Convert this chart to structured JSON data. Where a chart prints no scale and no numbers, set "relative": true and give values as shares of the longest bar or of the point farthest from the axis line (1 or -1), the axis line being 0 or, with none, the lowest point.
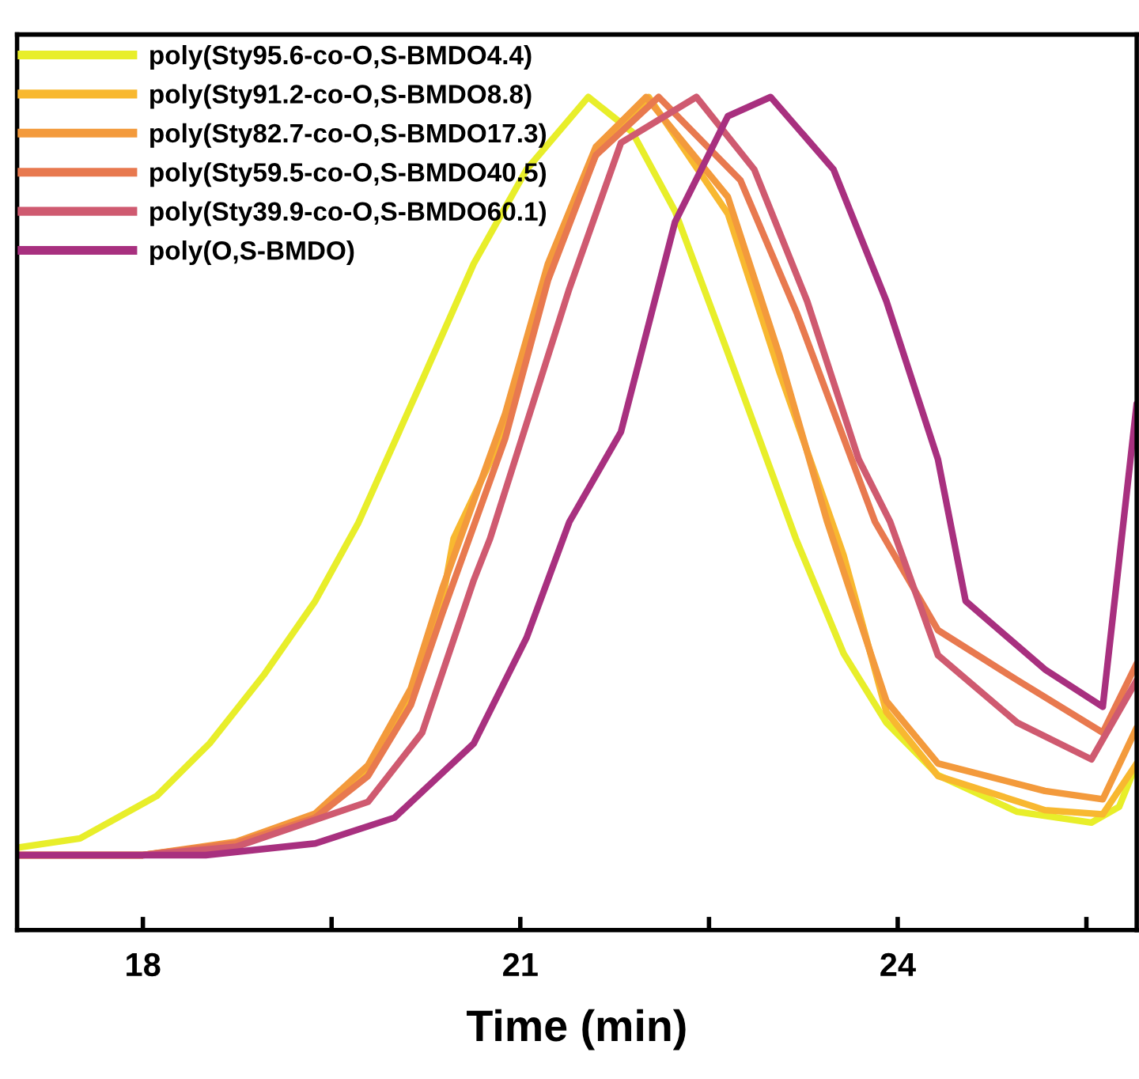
{
  "chart_data": {
    "type": "line",
    "relative": true,
    "xlabel": "Time (min)",
    "xlim": [
      17,
      25.9
    ],
    "xticks": [
      18,
      {
        "value": 19.5,
        "label": null
      },
      21,
      {
        "value": 22.5,
        "label": null
      },
      24,
      {
        "value": 25.5,
        "label": null
      }
    ],
    "legend": "top left",
    "grid": false,
    "marker": "none",
    "line_style": "solid",
    "series": [
      {
        "name": "poly(Sty95.6-co-O,S-BMDO4.4)",
        "color": "#e8ee2a",
        "x": [
          17.0,
          17.5,
          18.11,
          18.53,
          18.96,
          19.37,
          19.71,
          20.22,
          20.63,
          21.05,
          21.54,
          21.89,
          22.23,
          22.65,
          23.19,
          23.57,
          23.91,
          24.32,
          24.95,
          25.54,
          25.76,
          25.9
        ],
        "values": [
          0.099,
          0.11,
          0.161,
          0.224,
          0.306,
          0.395,
          0.488,
          0.66,
          0.8,
          0.913,
          1.0,
          0.958,
          0.863,
          0.693,
          0.47,
          0.332,
          0.249,
          0.186,
          0.142,
          0.129,
          0.148,
          0.2
        ]
      },
      {
        "name": "poly(Sty91.2-co-O,S-BMDO8.8)",
        "color": "#f8b830",
        "x": [
          17.0,
          18.0,
          18.74,
          19.37,
          19.79,
          20.13,
          20.38,
          20.47,
          20.88,
          21.22,
          21.6,
          22.02,
          22.65,
          23.06,
          23.57,
          23.91,
          24.32,
          25.17,
          25.63,
          25.9
        ],
        "values": [
          0.09,
          0.09,
          0.104,
          0.135,
          0.19,
          0.28,
          0.395,
          0.47,
          0.6,
          0.79,
          0.93,
          1.0,
          0.86,
          0.67,
          0.45,
          0.262,
          0.185,
          0.144,
          0.139,
          0.2
        ]
      },
      {
        "name": "poly(Sty82.7-co-O,S-BMDO17.3)",
        "color": "#f39a3c",
        "x": [
          17.0,
          18.0,
          18.74,
          19.37,
          19.79,
          20.13,
          20.38,
          20.88,
          21.22,
          21.6,
          22.0,
          22.65,
          23.06,
          23.44,
          23.91,
          24.32,
          25.17,
          25.63,
          25.9
        ],
        "values": [
          0.09,
          0.09,
          0.106,
          0.14,
          0.198,
          0.29,
          0.41,
          0.62,
          0.8,
          0.94,
          1.0,
          0.88,
          0.69,
          0.49,
          0.275,
          0.2,
          0.167,
          0.157,
          0.243
        ]
      },
      {
        "name": "poly(Sty59.5-co-O,S-BMDO40.5)",
        "color": "#e8794f",
        "x": [
          17.0,
          18.0,
          18.74,
          19.37,
          19.79,
          20.13,
          20.38,
          20.88,
          21.22,
          21.6,
          22.1,
          22.75,
          23.2,
          23.82,
          24.32,
          24.95,
          25.63,
          25.9
        ],
        "values": [
          0.09,
          0.09,
          0.104,
          0.135,
          0.185,
          0.27,
          0.38,
          0.59,
          0.78,
          0.93,
          1.0,
          0.9,
          0.74,
          0.49,
          0.36,
          0.3,
          0.237,
          0.32
        ]
      },
      {
        "name": "poly(Sty39.9-co-O,S-BMDO60.1)",
        "color": "#cf5a70",
        "x": [
          17.0,
          18.0,
          18.74,
          19.79,
          20.22,
          20.63,
          20.76,
          21.39,
          21.8,
          22.4,
          22.86,
          23.28,
          23.69,
          23.94,
          24.32,
          24.95,
          25.54,
          25.9
        ],
        "values": [
          0.09,
          0.09,
          0.1,
          0.154,
          0.237,
          0.42,
          0.47,
          0.77,
          0.945,
          1.0,
          0.913,
          0.755,
          0.565,
          0.49,
          0.33,
          0.249,
          0.205,
          0.3
        ]
      },
      {
        "name": "poly(O,S-BMDO)",
        "color": "#a8307f",
        "x": [
          17.0,
          18.5,
          19.37,
          20.0,
          20.63,
          21.05,
          21.39,
          21.8,
          22.23,
          22.65,
          22.99,
          23.49,
          23.91,
          24.32,
          24.54,
          25.17,
          25.63,
          25.9
        ],
        "values": [
          0.09,
          0.09,
          0.104,
          0.135,
          0.224,
          0.351,
          0.49,
          0.598,
          0.85,
          0.977,
          1.0,
          0.913,
          0.755,
          0.565,
          0.395,
          0.313,
          0.268,
          0.632
        ]
      }
    ]
  }
}
